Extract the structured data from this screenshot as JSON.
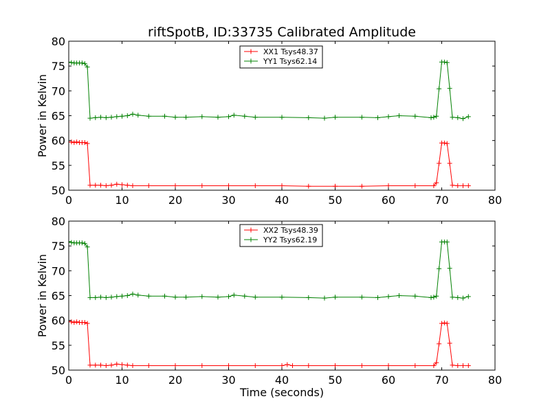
{
  "title": "riftSpotB, ID:33735 Calibrated Amplitude",
  "colors": {
    "XX": "#ff0000",
    "YY": "#008000",
    "frame": "#000000",
    "background": "#ffffff"
  },
  "chart_data": [
    {
      "type": "line",
      "ylabel": "Power in Kelvin",
      "xlabel": "",
      "xlim": [
        0,
        80
      ],
      "ylim": [
        50,
        80
      ],
      "xticks": [
        0,
        10,
        20,
        30,
        40,
        50,
        60,
        70,
        80
      ],
      "yticks": [
        50,
        55,
        60,
        65,
        70,
        75,
        80
      ],
      "grid": false,
      "legend_position": "top-center",
      "marker": "+",
      "series": [
        {
          "name": "XX1 Tsys48.37",
          "color": "#ff0000",
          "x": [
            0,
            0.5,
            1,
            1.5,
            2,
            2.5,
            3,
            3.5,
            4,
            5,
            6,
            7,
            8,
            9,
            10,
            11,
            12,
            15,
            20,
            25,
            30,
            35,
            40,
            45,
            50,
            55,
            60,
            65,
            68.5,
            69,
            69.5,
            70,
            70.5,
            71,
            71.5,
            72,
            73,
            74,
            75
          ],
          "values": [
            59.7,
            59.7,
            59.6,
            59.7,
            59.6,
            59.6,
            59.6,
            59.4,
            51.0,
            51.0,
            51.0,
            50.9,
            51.0,
            51.2,
            51.1,
            51.0,
            50.9,
            50.9,
            50.9,
            50.9,
            50.9,
            50.9,
            50.9,
            50.8,
            50.8,
            50.8,
            50.9,
            50.9,
            50.9,
            51.5,
            55.4,
            59.5,
            59.5,
            59.4,
            55.4,
            51.0,
            50.9,
            50.9,
            50.9
          ]
        },
        {
          "name": "YY1 Tsys62.14",
          "color": "#008000",
          "x": [
            0,
            0.5,
            1,
            1.5,
            2,
            2.5,
            3,
            3.5,
            4,
            5,
            6,
            7,
            8,
            9,
            10,
            11,
            12,
            13,
            15,
            18,
            20,
            22,
            25,
            28,
            30,
            31,
            33,
            35,
            40,
            45,
            48,
            50,
            55,
            58,
            60,
            62,
            65,
            68,
            68.5,
            69,
            69.5,
            70,
            70.5,
            71,
            71.5,
            72,
            73,
            74,
            75
          ],
          "values": [
            75.8,
            75.7,
            75.6,
            75.6,
            75.6,
            75.6,
            75.5,
            74.8,
            64.5,
            64.6,
            64.7,
            64.6,
            64.7,
            64.8,
            64.9,
            65.0,
            65.3,
            65.1,
            64.9,
            64.9,
            64.7,
            64.7,
            64.8,
            64.7,
            64.8,
            65.1,
            64.9,
            64.7,
            64.7,
            64.6,
            64.5,
            64.7,
            64.7,
            64.6,
            64.8,
            65.0,
            64.9,
            64.6,
            64.7,
            64.9,
            70.4,
            75.8,
            75.8,
            75.7,
            70.5,
            64.7,
            64.6,
            64.4,
            64.8
          ]
        }
      ]
    },
    {
      "type": "line",
      "ylabel": "Power in Kelvin",
      "xlabel": "Time (seconds)",
      "xlim": [
        0,
        80
      ],
      "ylim": [
        50,
        80
      ],
      "xticks": [
        0,
        10,
        20,
        30,
        40,
        50,
        60,
        70,
        80
      ],
      "yticks": [
        50,
        55,
        60,
        65,
        70,
        75,
        80
      ],
      "grid": false,
      "legend_position": "top-center",
      "marker": "+",
      "series": [
        {
          "name": "XX2 Tsys48.39",
          "color": "#ff0000",
          "x": [
            0,
            0.5,
            1,
            1.5,
            2,
            2.5,
            3,
            3.5,
            4,
            5,
            6,
            7,
            8,
            9,
            10,
            11,
            12,
            15,
            20,
            25,
            30,
            35,
            40,
            41,
            42,
            45,
            50,
            55,
            60,
            65,
            68.5,
            69,
            69.5,
            70,
            70.5,
            71,
            71.5,
            72,
            73,
            74,
            75
          ],
          "values": [
            59.8,
            59.7,
            59.6,
            59.7,
            59.6,
            59.6,
            59.6,
            59.4,
            51.0,
            51.0,
            51.0,
            50.9,
            51.0,
            51.2,
            51.1,
            51.0,
            50.9,
            50.9,
            50.9,
            50.9,
            50.9,
            50.9,
            50.9,
            51.1,
            50.9,
            50.9,
            50.9,
            50.9,
            50.9,
            50.9,
            50.9,
            51.5,
            55.3,
            59.4,
            59.5,
            59.4,
            55.4,
            51.0,
            50.9,
            50.9,
            50.9
          ]
        },
        {
          "name": "YY2 Tsys62.19",
          "color": "#008000",
          "x": [
            0,
            0.5,
            1,
            1.5,
            2,
            2.5,
            3,
            3.5,
            4,
            5,
            6,
            7,
            8,
            9,
            10,
            11,
            12,
            13,
            15,
            18,
            20,
            22,
            25,
            28,
            30,
            31,
            33,
            35,
            40,
            45,
            48,
            50,
            55,
            58,
            60,
            62,
            65,
            68,
            68.5,
            69,
            69.5,
            70,
            70.5,
            71,
            71.5,
            72,
            73,
            74,
            75
          ],
          "values": [
            75.9,
            75.7,
            75.6,
            75.6,
            75.6,
            75.6,
            75.5,
            74.8,
            64.6,
            64.6,
            64.7,
            64.6,
            64.7,
            64.8,
            64.9,
            65.0,
            65.3,
            65.1,
            64.9,
            64.9,
            64.7,
            64.7,
            64.8,
            64.7,
            64.8,
            65.1,
            64.9,
            64.7,
            64.7,
            64.6,
            64.5,
            64.7,
            64.7,
            64.6,
            64.8,
            65.0,
            64.9,
            64.6,
            64.7,
            64.9,
            70.4,
            75.8,
            75.8,
            75.8,
            70.5,
            64.7,
            64.6,
            64.5,
            64.8
          ]
        }
      ]
    }
  ]
}
